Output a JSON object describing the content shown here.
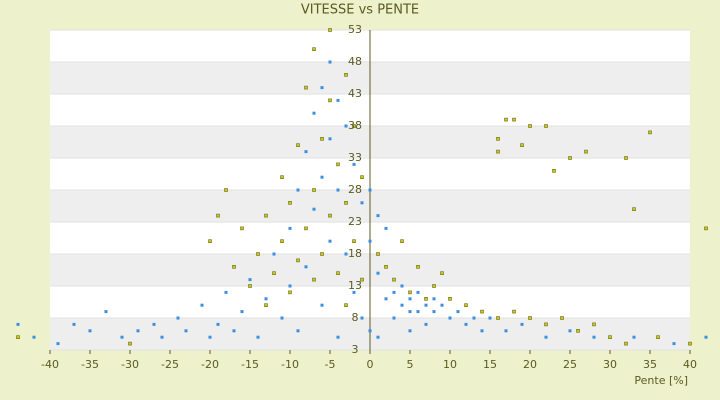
{
  "chart_data": {
    "type": "scatter",
    "title": "VITESSE vs PENTE",
    "x_label": "Pente [%]",
    "xlim": [
      -40,
      40
    ],
    "xticks": [
      -40,
      -35,
      -30,
      -25,
      -20,
      -15,
      -10,
      -5,
      0,
      5,
      10,
      15,
      20,
      25,
      30,
      35,
      40
    ],
    "ylim": [
      3,
      53
    ],
    "yticks": [
      3,
      8,
      13,
      18,
      23,
      28,
      33,
      38,
      43,
      48,
      53
    ],
    "series": [
      {
        "color": "#3b8ee0",
        "x": [
          -44,
          -42,
          -39,
          -37,
          -35,
          -33,
          -31,
          -29,
          -27,
          -26,
          -24,
          -23,
          -21,
          -20,
          -19,
          -18,
          -17,
          -16,
          -15,
          -14,
          -13,
          -12,
          -11,
          -10,
          -10,
          -9,
          -9,
          -8,
          -8,
          -7,
          -7,
          -6,
          -6,
          -6,
          -5,
          -5,
          -5,
          -4,
          -4,
          -4,
          -3,
          -3,
          -2,
          -2,
          -1,
          -1,
          0,
          0,
          0,
          1,
          1,
          1,
          2,
          2,
          3,
          3,
          4,
          4,
          5,
          5,
          5,
          6,
          6,
          7,
          7,
          8,
          8,
          9,
          10,
          11,
          12,
          13,
          14,
          15,
          17,
          19,
          22,
          25,
          28,
          33,
          38,
          42
        ],
        "values": [
          7,
          5,
          4,
          7,
          6,
          9,
          5,
          6,
          7,
          5,
          8,
          6,
          10,
          5,
          7,
          12,
          6,
          9,
          14,
          5,
          11,
          18,
          8,
          22,
          13,
          28,
          6,
          34,
          16,
          40,
          25,
          44,
          30,
          10,
          48,
          36,
          20,
          42,
          28,
          5,
          38,
          18,
          32,
          12,
          26,
          8,
          28,
          20,
          6,
          24,
          15,
          5,
          22,
          11,
          12,
          8,
          13,
          10,
          11,
          9,
          6,
          12,
          9,
          10,
          7,
          11,
          9,
          10,
          8,
          9,
          7,
          8,
          6,
          8,
          6,
          7,
          5,
          6,
          5,
          5,
          4,
          5
        ]
      },
      {
        "color": "#c8c820",
        "x": [
          -44,
          -30,
          -20,
          -19,
          -18,
          -17,
          -16,
          -15,
          -14,
          -13,
          -13,
          -12,
          -11,
          -11,
          -10,
          -10,
          -9,
          -9,
          -8,
          -8,
          -7,
          -7,
          -7,
          -6,
          -6,
          -5,
          -5,
          -5,
          -4,
          -4,
          -3,
          -3,
          -3,
          -2,
          -2,
          -1,
          -1,
          1,
          2,
          3,
          4,
          5,
          6,
          7,
          8,
          9,
          10,
          12,
          14,
          16,
          18,
          20,
          22,
          24,
          26,
          28,
          30,
          32,
          36,
          40,
          17,
          18,
          19,
          20,
          22,
          23,
          25,
          27,
          32,
          35,
          33,
          42,
          16,
          16
        ],
        "values": [
          5,
          4,
          20,
          24,
          28,
          16,
          22,
          13,
          18,
          24,
          10,
          15,
          20,
          30,
          12,
          26,
          17,
          35,
          22,
          44,
          14,
          28,
          50,
          36,
          18,
          42,
          24,
          53,
          32,
          15,
          46,
          26,
          10,
          38,
          20,
          30,
          14,
          18,
          16,
          14,
          20,
          12,
          16,
          11,
          13,
          15,
          11,
          10,
          9,
          8,
          9,
          8,
          7,
          8,
          6,
          7,
          5,
          4,
          5,
          4,
          39,
          39,
          35,
          38,
          38,
          31,
          33,
          34,
          33,
          37,
          25,
          22,
          36,
          34
        ]
      }
    ]
  }
}
